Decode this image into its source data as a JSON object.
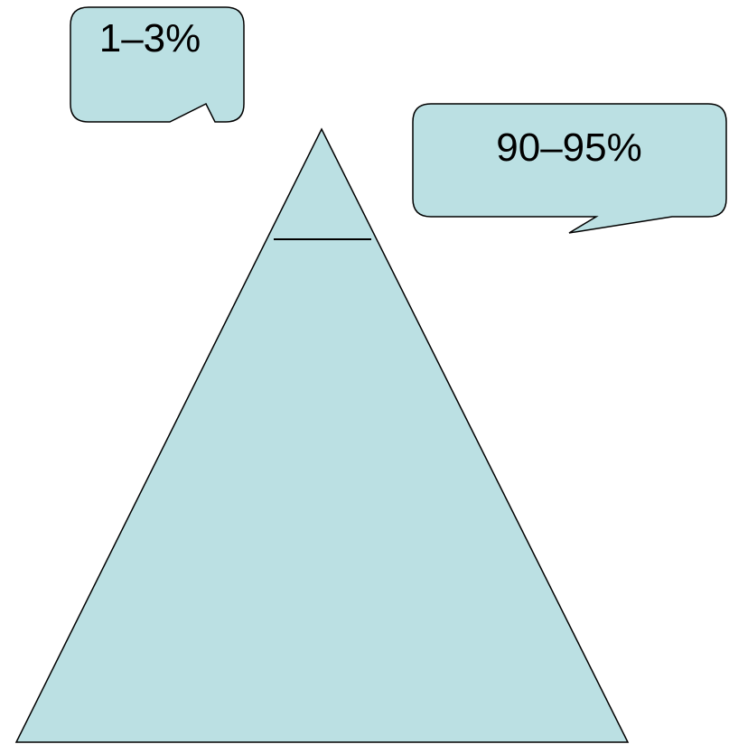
{
  "colors": {
    "fill": "#bbe0e3",
    "stroke": "#000000",
    "background": "#ffffff"
  },
  "callouts": {
    "top_segment": {
      "label": "1–3%"
    },
    "base_segment": {
      "label": "90–95%"
    }
  }
}
